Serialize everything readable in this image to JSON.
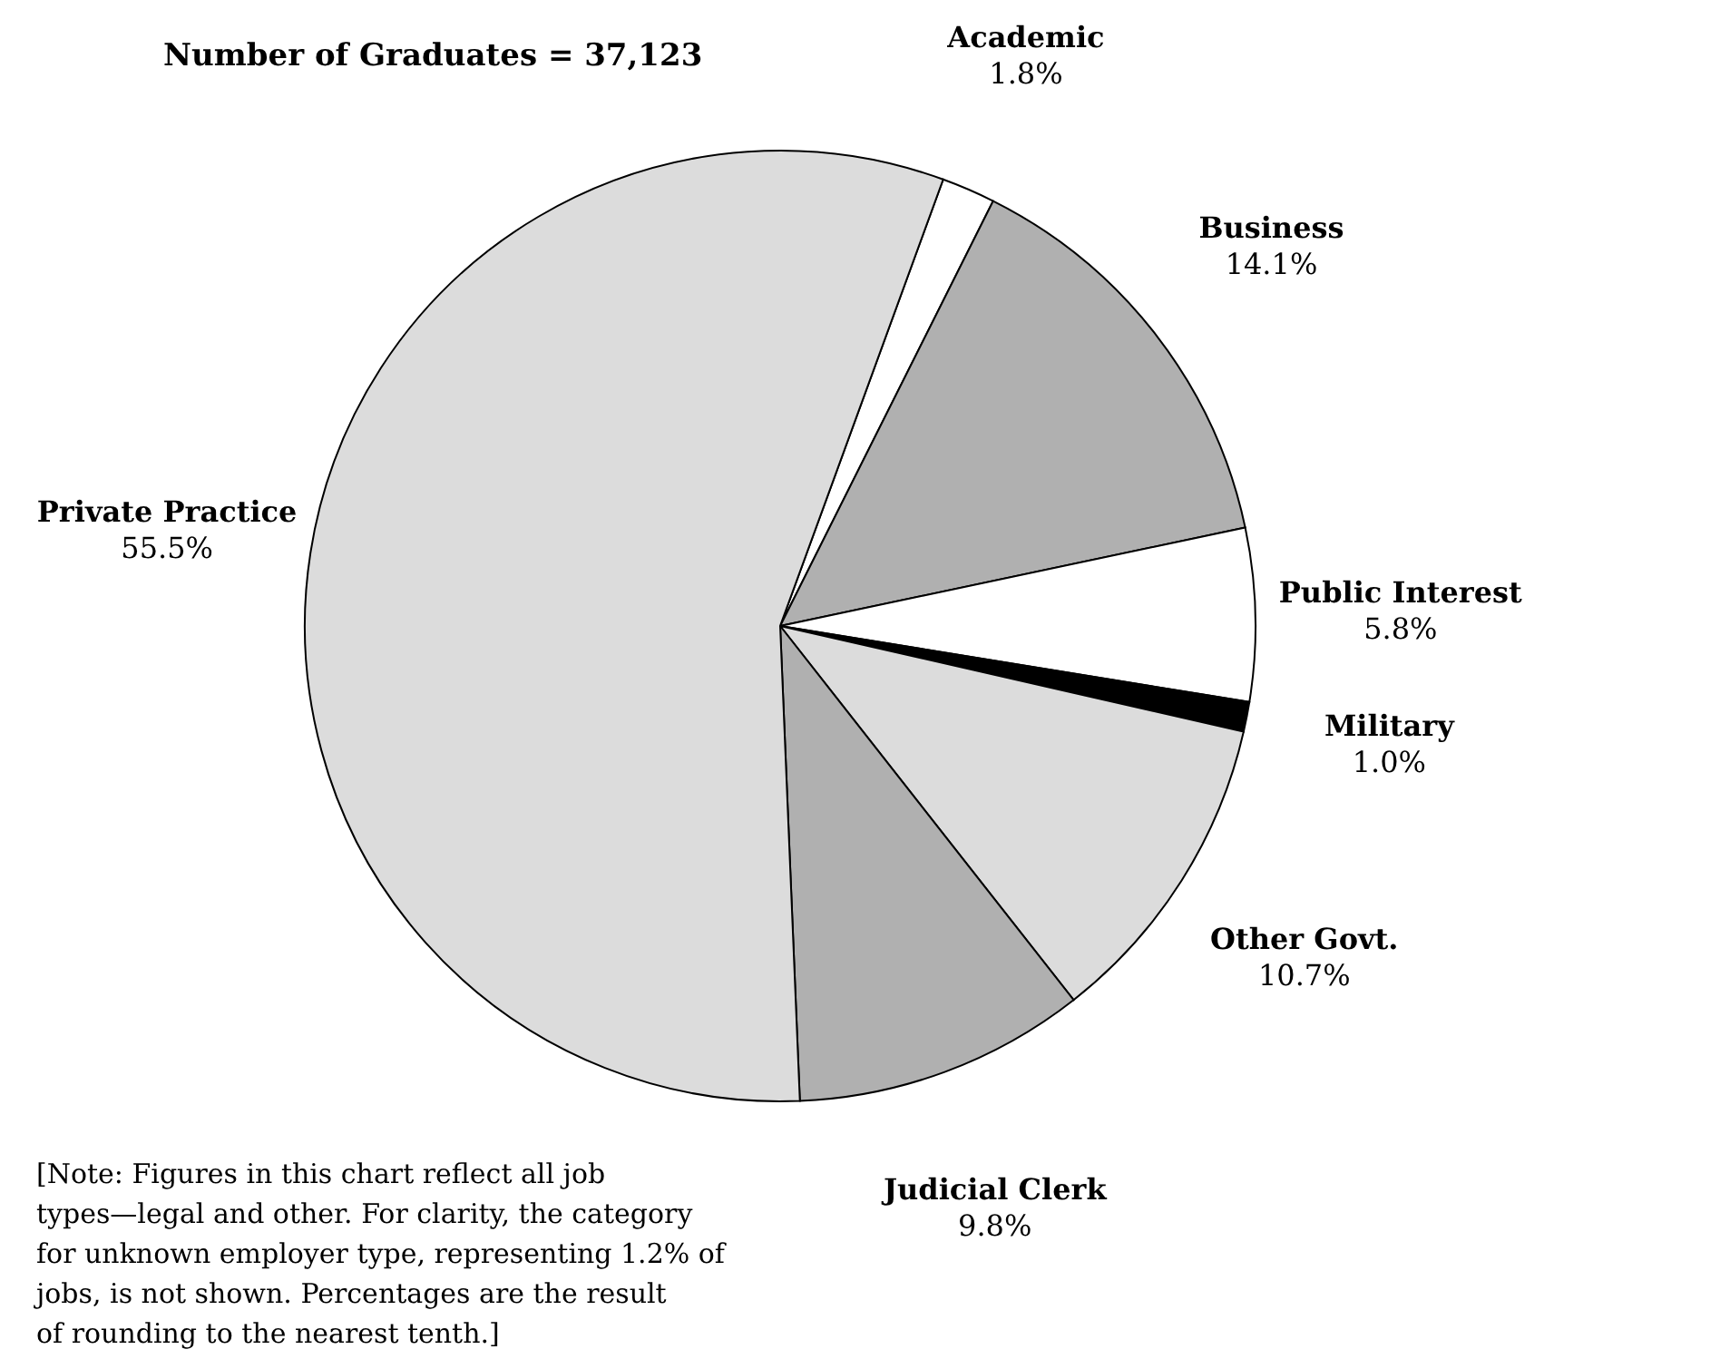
{
  "chart_data": {
    "type": "pie",
    "title": "Number of Graduates = 37,123",
    "categories": [
      "Academic",
      "Business",
      "Public Interest",
      "Military",
      "Other Govt.",
      "Judicial Clerk",
      "Private Practice"
    ],
    "values": [
      1.8,
      14.1,
      5.8,
      1.0,
      10.7,
      9.8,
      55.5
    ],
    "value_labels": [
      "1.8%",
      "14.1%",
      "5.8%",
      "1.0%",
      "10.7%",
      "9.8%",
      "55.5%"
    ],
    "colors": [
      "#ffffff",
      "#b0b0b0",
      "#ffffff",
      "#000000",
      "#dcdcdc",
      "#b0b0b0",
      "#dcdcdc"
    ],
    "annotations": [
      "[Note: Figures in this chart reflect all job types—legal and other. For clarity, the category for unknown employer type, representing 1.2% of jobs, is not shown. Percentages are the result of rounding to the nearest tenth.]"
    ],
    "legend": false
  }
}
